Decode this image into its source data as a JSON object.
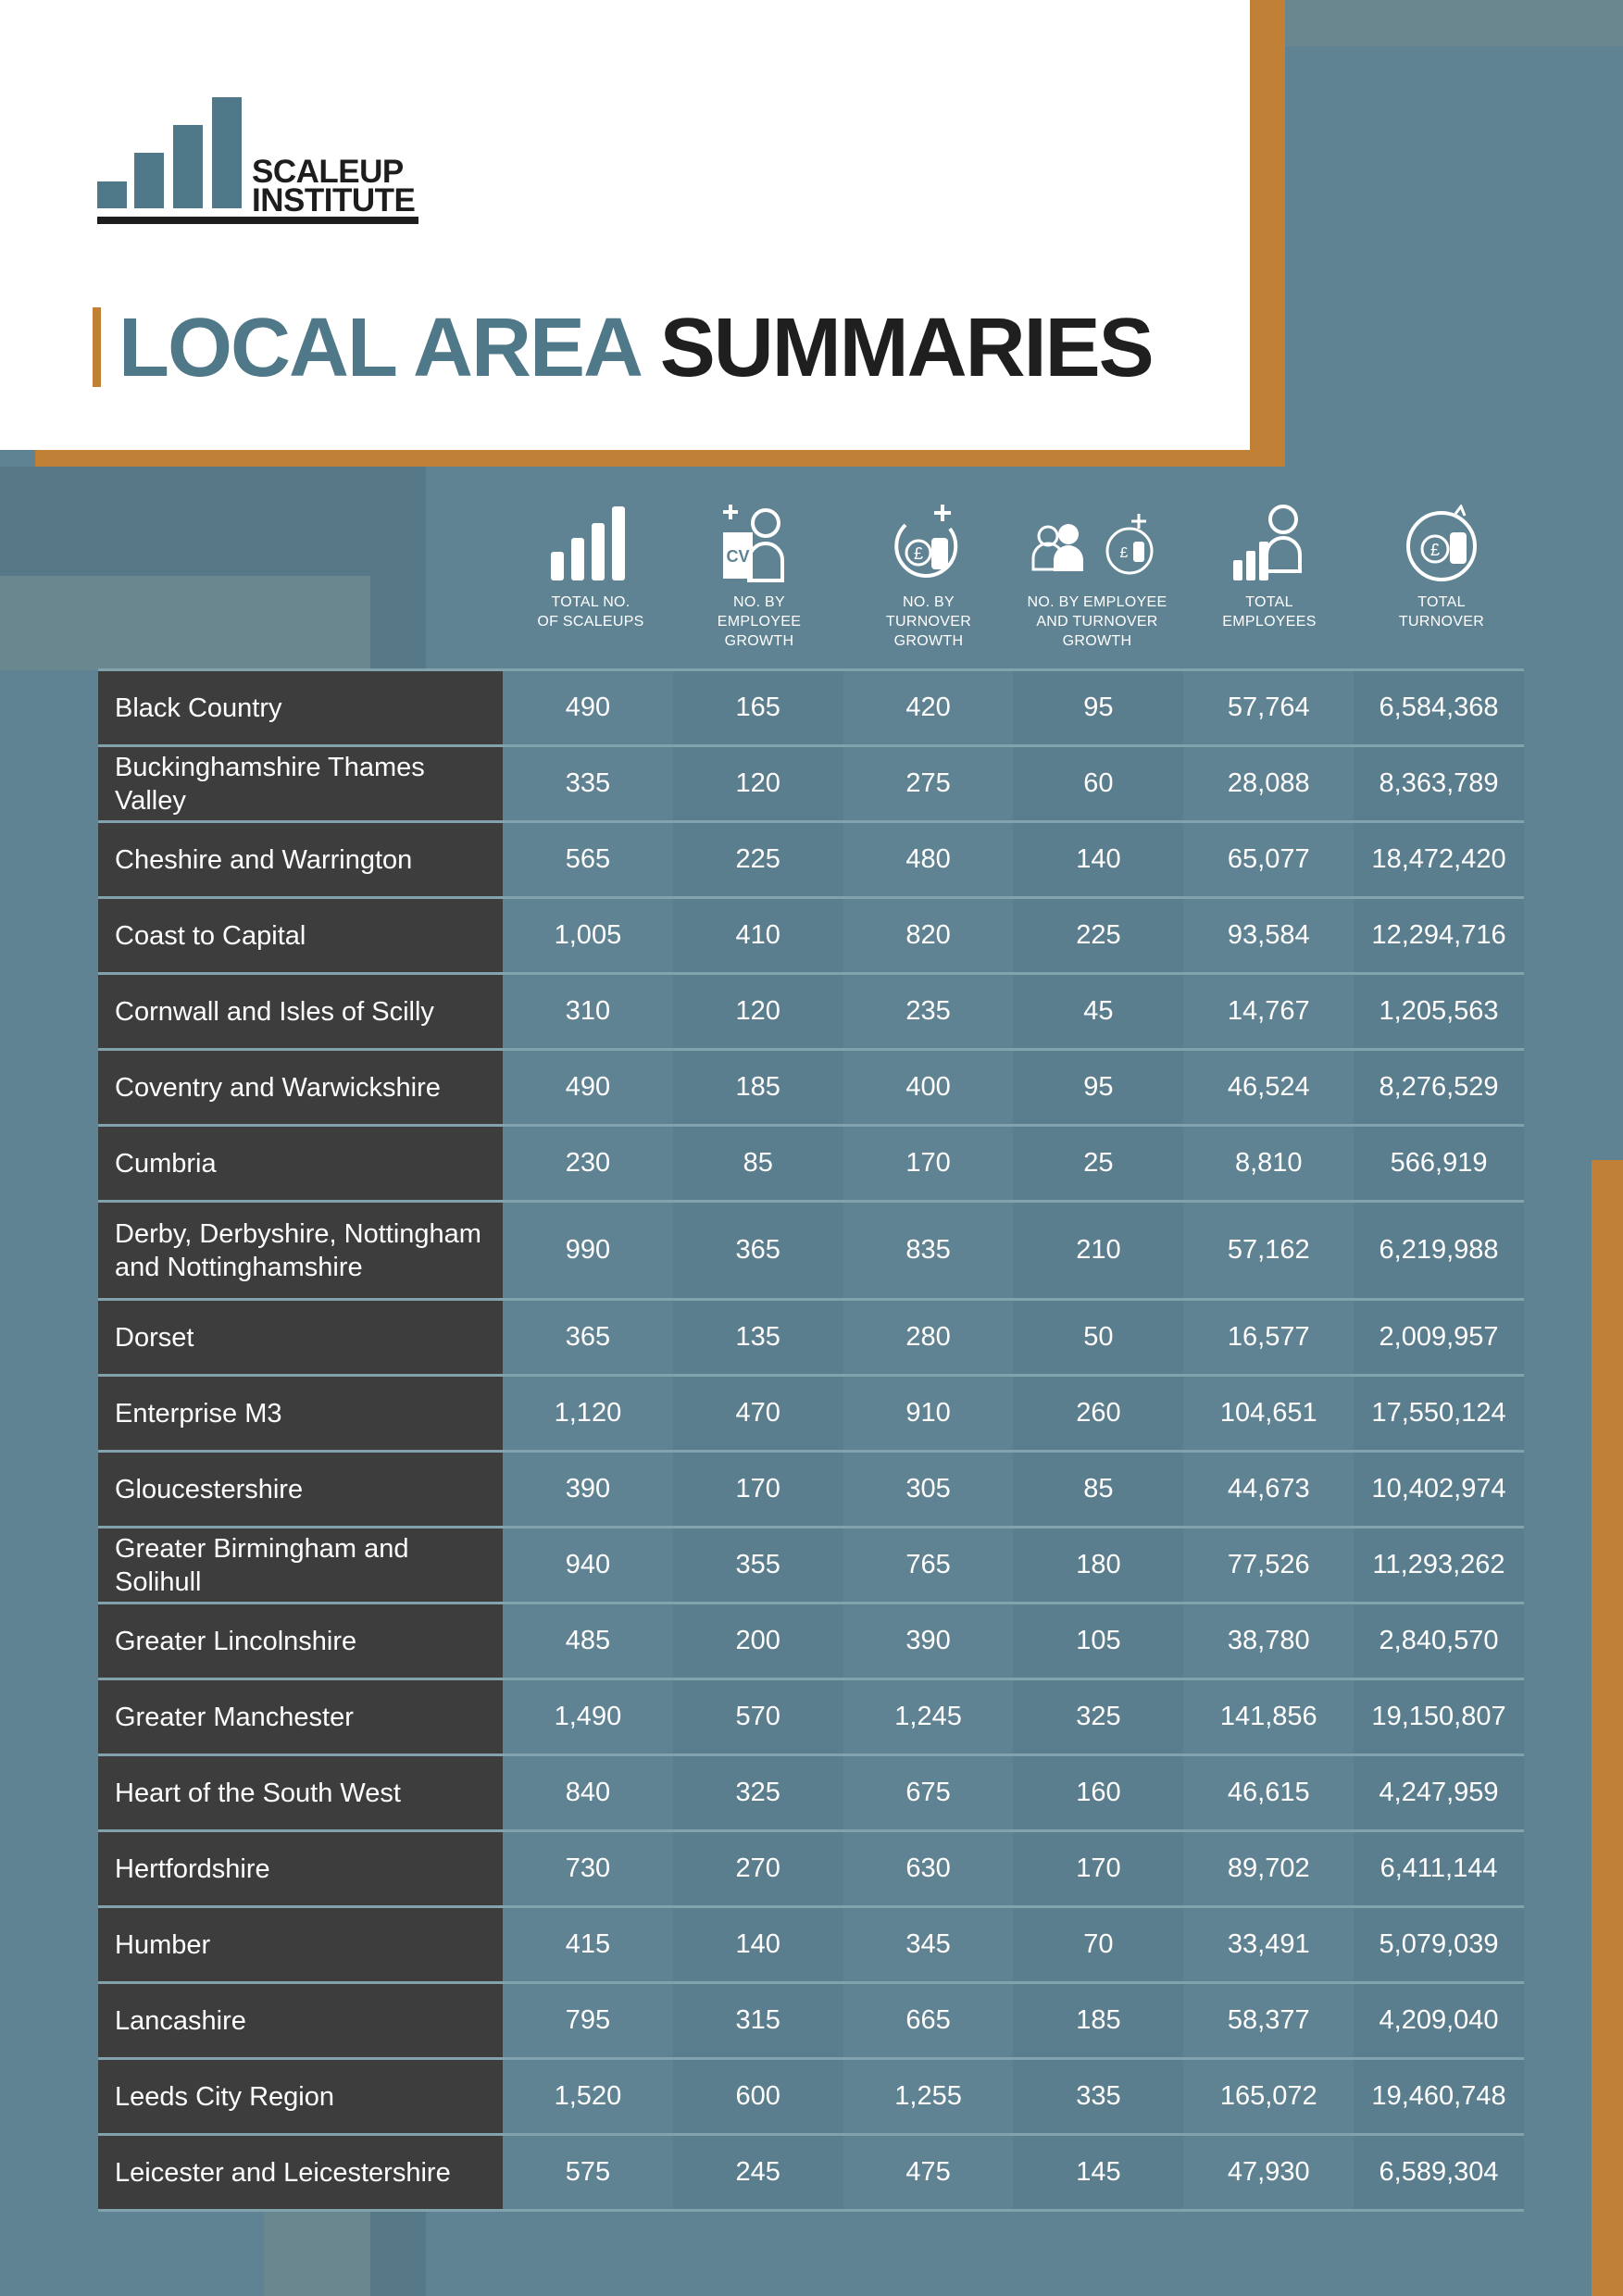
{
  "brand": {
    "logo_line1": "SCALEUP",
    "logo_line2": "INSTITUTE",
    "accent_color": "#c08035",
    "primary_color": "#4f7888"
  },
  "title": {
    "part1": "LOCAL AREA",
    "part2": "SUMMARIES"
  },
  "columns": [
    {
      "icon": "bar-chart-icon",
      "label_line1": "TOTAL NO.",
      "label_line2": "OF SCALEUPS",
      "label_line3": ""
    },
    {
      "icon": "cv-person-plus-icon",
      "label_line1": "NO. BY",
      "label_line2": "EMPLOYEE",
      "label_line3": "GROWTH"
    },
    {
      "icon": "coins-plus-icon",
      "label_line1": "NO. BY",
      "label_line2": "TURNOVER",
      "label_line3": "GROWTH"
    },
    {
      "icon": "people-coins-icon",
      "label_line1": "NO. BY EMPLOYEE",
      "label_line2": "AND TURNOVER",
      "label_line3": "GROWTH"
    },
    {
      "icon": "chart-person-icon",
      "label_line1": "TOTAL",
      "label_line2": "EMPLOYEES",
      "label_line3": ""
    },
    {
      "icon": "coins-cycle-icon",
      "label_line1": "TOTAL",
      "label_line2": "TURNOVER",
      "label_line3": ""
    }
  ],
  "rows": [
    {
      "name": "Black Country",
      "values": [
        "490",
        "165",
        "420",
        "95",
        "57,764",
        "6,584,368"
      ]
    },
    {
      "name": "Buckinghamshire Thames Valley",
      "values": [
        "335",
        "120",
        "275",
        "60",
        "28,088",
        "8,363,789"
      ]
    },
    {
      "name": "Cheshire and Warrington",
      "values": [
        "565",
        "225",
        "480",
        "140",
        "65,077",
        "18,472,420"
      ]
    },
    {
      "name": "Coast to Capital",
      "values": [
        "1,005",
        "410",
        "820",
        "225",
        "93,584",
        "12,294,716"
      ]
    },
    {
      "name": "Cornwall and Isles of Scilly",
      "values": [
        "310",
        "120",
        "235",
        "45",
        "14,767",
        "1,205,563"
      ]
    },
    {
      "name": "Coventry and Warwickshire",
      "values": [
        "490",
        "185",
        "400",
        "95",
        "46,524",
        "8,276,529"
      ]
    },
    {
      "name": " Cumbria",
      "values": [
        "230",
        "85",
        "170",
        "25",
        "8,810",
        "566,919"
      ]
    },
    {
      "name": "Derby, Derbyshire, Nottingham and Nottinghamshire",
      "values": [
        "990",
        "365",
        "835",
        "210",
        "57,162",
        "6,219,988"
      ]
    },
    {
      "name": "Dorset",
      "values": [
        "365",
        "135",
        "280",
        "50",
        "16,577",
        "2,009,957"
      ]
    },
    {
      "name": "Enterprise M3",
      "values": [
        "1,120",
        "470",
        "910",
        "260",
        "104,651",
        "17,550,124"
      ]
    },
    {
      "name": "Gloucestershire",
      "values": [
        "390",
        "170",
        "305",
        "85",
        "44,673",
        "10,402,974"
      ]
    },
    {
      "name": "Greater Birmingham and Solihull",
      "values": [
        "940",
        "355",
        "765",
        "180",
        "77,526",
        "11,293,262"
      ]
    },
    {
      "name": "Greater Lincolnshire",
      "values": [
        "485",
        "200",
        "390",
        "105",
        "38,780",
        "2,840,570"
      ]
    },
    {
      "name": "Greater Manchester",
      "values": [
        "1,490",
        "570",
        "1,245",
        "325",
        "141,856",
        "19,150,807"
      ]
    },
    {
      "name": "Heart of the South West",
      "values": [
        "840",
        "325",
        "675",
        "160",
        "46,615",
        "4,247,959"
      ]
    },
    {
      "name": "Hertfordshire",
      "values": [
        "730",
        "270",
        "630",
        "170",
        "89,702",
        "6,411,144"
      ]
    },
    {
      "name": "Humber",
      "values": [
        "415",
        "140",
        "345",
        "70",
        "33,491",
        "5,079,039"
      ]
    },
    {
      "name": "Lancashire",
      "values": [
        "795",
        "315",
        "665",
        "185",
        "58,377",
        "4,209,040"
      ]
    },
    {
      "name": "Leeds City Region",
      "values": [
        "1,520",
        "600",
        "1,255",
        "335",
        "165,072",
        "19,460,748"
      ]
    },
    {
      "name": "Leicester and Leicestershire",
      "values": [
        "575",
        "245",
        "475",
        "145",
        "47,930",
        "6,589,304"
      ]
    }
  ]
}
